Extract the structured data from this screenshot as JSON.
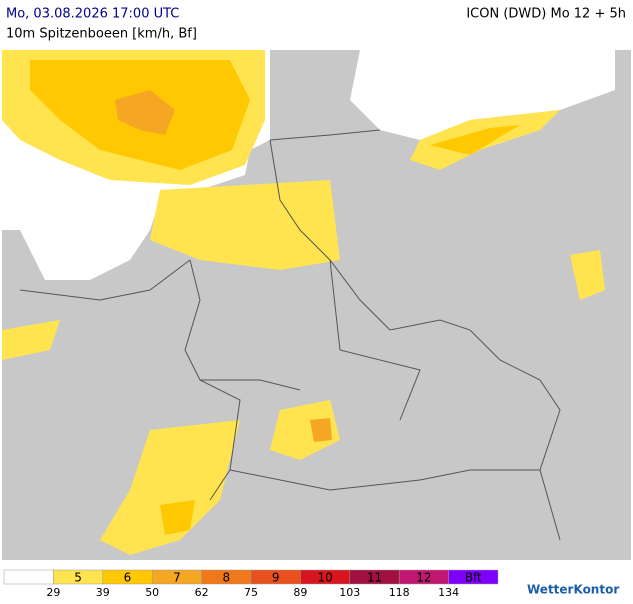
{
  "header": {
    "left": "Mo, 03.08.2026 17:00 UTC",
    "right": "ICON (DWD) Mo 12 + 5h",
    "subtitle": "10m Spitzenboeen [km/h, Bf]"
  },
  "legend": {
    "colors": [
      "#ffffff",
      "#ffe450",
      "#ffc800",
      "#f5a623",
      "#f07818",
      "#e8501e",
      "#d8141e",
      "#a01040",
      "#c01870",
      "#8000ff"
    ],
    "labels": [
      "5",
      "6",
      "7",
      "8",
      "9",
      "10",
      "11",
      "12",
      "Bft"
    ],
    "thresholds": [
      29,
      39,
      50,
      62,
      75,
      89,
      103,
      118,
      134
    ]
  },
  "logo": "WetterKontor"
}
